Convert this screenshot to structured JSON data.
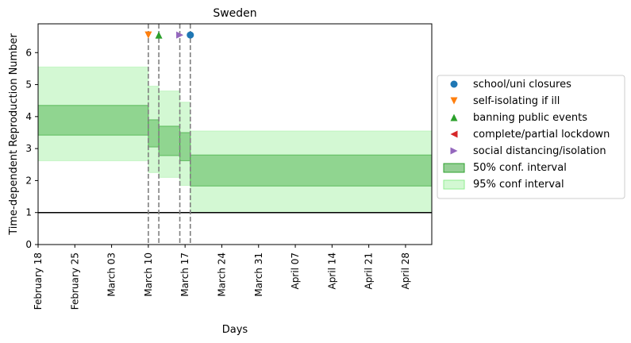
{
  "chart_data": {
    "type": "area",
    "title": "Sweden",
    "xlabel": "Days",
    "ylabel": "Time-dependent Reproduction Number",
    "x_ticks": [
      "February 18",
      "February 25",
      "March 03",
      "March 10",
      "March 17",
      "March 24",
      "March 31",
      "April 07",
      "April 14",
      "April 21",
      "April 28"
    ],
    "xlim": [
      "February 18",
      "May 3"
    ],
    "ylim": [
      0,
      6.9
    ],
    "y_ticks": [
      0,
      1,
      2,
      3,
      4,
      5,
      6
    ],
    "reference_line": 1,
    "ci50": [
      {
        "start": "February 18",
        "end": "March 10",
        "low": 3.42,
        "high": 4.35
      },
      {
        "start": "March 10",
        "end": "March 12",
        "low": 3.05,
        "high": 3.9
      },
      {
        "start": "March 12",
        "end": "March 16",
        "low": 2.78,
        "high": 3.7
      },
      {
        "start": "March 16",
        "end": "March 18",
        "low": 2.62,
        "high": 3.5
      },
      {
        "start": "March 18",
        "end": "May 3",
        "low": 1.83,
        "high": 2.8
      }
    ],
    "ci95": [
      {
        "start": "February 18",
        "end": "March 10",
        "low": 2.62,
        "high": 5.55
      },
      {
        "start": "March 10",
        "end": "March 12",
        "low": 2.25,
        "high": 4.95
      },
      {
        "start": "March 12",
        "end": "March 16",
        "low": 2.1,
        "high": 4.8
      },
      {
        "start": "March 16",
        "end": "March 18",
        "low": 1.85,
        "high": 4.45
      },
      {
        "start": "March 18",
        "end": "May 3",
        "low": 1.0,
        "high": 3.55
      }
    ],
    "interventions": [
      {
        "name": "school/uni closures",
        "date": "March 18",
        "marker": "circle",
        "color": "#1f77b4"
      },
      {
        "name": "self-isolating if ill",
        "date": "March 10",
        "marker": "triangle-down",
        "color": "#ff7f0e"
      },
      {
        "name": "banning public events",
        "date": "March 12",
        "marker": "triangle-up",
        "color": "#2ca02c"
      },
      {
        "name": "complete/partial lockdown",
        "date": null,
        "marker": "triangle-left",
        "color": "#d62728"
      },
      {
        "name": "social distancing/isolation",
        "date": "March 16",
        "marker": "triangle-right",
        "color": "#9467bd"
      }
    ],
    "marker_y": 6.55,
    "legend": {
      "placement": "right",
      "items": [
        {
          "label": "school/uni closures",
          "kind": "circle",
          "color": "#1f77b4"
        },
        {
          "label": "self-isolating if ill",
          "kind": "triangle-down",
          "color": "#ff7f0e"
        },
        {
          "label": "banning public events",
          "kind": "triangle-up",
          "color": "#2ca02c"
        },
        {
          "label": "complete/partial lockdown",
          "kind": "triangle-left",
          "color": "#d62728"
        },
        {
          "label": "social distancing/isolation",
          "kind": "triangle-right",
          "color": "#9467bd"
        },
        {
          "label": "50% conf. interval",
          "kind": "patch",
          "color": "#2ca02c"
        },
        {
          "label": "95% conf interval",
          "kind": "patch",
          "color": "#90ee90"
        }
      ]
    },
    "colors": {
      "ci50": "#2ca02c",
      "ci95": "#90ee90",
      "vline": "#808080",
      "hline": "#000000"
    }
  }
}
